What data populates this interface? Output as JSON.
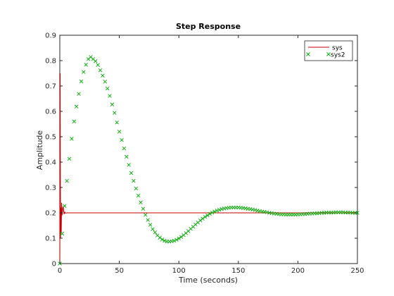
{
  "chart_data": {
    "type": "line",
    "title": "Step Response",
    "xlabel": "Time (seconds)",
    "ylabel": "Amplitude",
    "xlim": [
      0,
      250
    ],
    "ylim": [
      0,
      0.9
    ],
    "x_ticks": [
      0,
      50,
      100,
      150,
      200,
      250
    ],
    "y_ticks": [
      0,
      0.1,
      0.2,
      0.3,
      0.4,
      0.5,
      0.6,
      0.7,
      0.8,
      0.9
    ],
    "x_tick_labels": [
      "0",
      "50",
      "100",
      "150",
      "200",
      "250"
    ],
    "y_tick_labels": [
      "0",
      "0.1",
      "0.2",
      "0.3",
      "0.4",
      "0.5",
      "0.6",
      "0.7",
      "0.8",
      "0.9"
    ],
    "grid": false,
    "legend_position": "top-right",
    "series": [
      {
        "name": "sys",
        "style": "line",
        "color": "#cc0000",
        "x": [
          0,
          0.3,
          0.6,
          0.9,
          1.2,
          1.5,
          1.8,
          2.1,
          2.4,
          2.7,
          3.0,
          3.3,
          3.6,
          3.9,
          4.2,
          4.5,
          5,
          6,
          8,
          10,
          250
        ],
        "values": [
          0,
          0.75,
          0.1,
          0.22,
          0.12,
          0.24,
          0.19,
          0.2,
          0.215,
          0.225,
          0.22,
          0.205,
          0.195,
          0.2,
          0.203,
          0.2,
          0.199,
          0.2,
          0.2,
          0.2,
          0.2
        ]
      },
      {
        "name": "sys2",
        "style": "marker",
        "marker": "x",
        "color": "#00aa00",
        "x": [
          0,
          2,
          4,
          6,
          8,
          10,
          12,
          14,
          16,
          18,
          20,
          22,
          24,
          26,
          28,
          30,
          32,
          34,
          36,
          38,
          40,
          42,
          44,
          46,
          48,
          50,
          52,
          54,
          56,
          58,
          60,
          62,
          64,
          66,
          68,
          70,
          72,
          74,
          76,
          78,
          80,
          82,
          84,
          86,
          88,
          90,
          92,
          94,
          96,
          98,
          100,
          102,
          104,
          106,
          108,
          110,
          112,
          114,
          116,
          118,
          120,
          122,
          124,
          126,
          128,
          130,
          132,
          134,
          136,
          138,
          140,
          142,
          144,
          146,
          148,
          150,
          152,
          154,
          156,
          158,
          160,
          162,
          164,
          166,
          168,
          170,
          172,
          174,
          176,
          178,
          180,
          182,
          184,
          186,
          188,
          190,
          192,
          194,
          196,
          198,
          200,
          202,
          204,
          206,
          208,
          210,
          212,
          214,
          216,
          218,
          220,
          222,
          224,
          226,
          228,
          230,
          232,
          234,
          236,
          238,
          240,
          242,
          244,
          246,
          248,
          250
        ],
        "values": [
          0,
          0.118,
          0.227,
          0.326,
          0.413,
          0.492,
          0.56,
          0.619,
          0.669,
          0.718,
          0.755,
          0.784,
          0.806,
          0.814,
          0.806,
          0.798,
          0.783,
          0.762,
          0.741,
          0.717,
          0.69,
          0.661,
          0.627,
          0.594,
          0.556,
          0.52,
          0.487,
          0.454,
          0.421,
          0.389,
          0.357,
          0.326,
          0.296,
          0.268,
          0.241,
          0.216,
          0.192,
          0.172,
          0.153,
          0.136,
          0.123,
          0.111,
          0.102,
          0.095,
          0.09,
          0.087,
          0.087,
          0.088,
          0.09,
          0.094,
          0.099,
          0.105,
          0.112,
          0.12,
          0.128,
          0.137,
          0.145,
          0.154,
          0.162,
          0.17,
          0.177,
          0.184,
          0.19,
          0.196,
          0.201,
          0.205,
          0.209,
          0.212,
          0.215,
          0.217,
          0.219,
          0.22,
          0.221,
          0.221,
          0.221,
          0.221,
          0.22,
          0.219,
          0.218,
          0.216,
          0.215,
          0.213,
          0.211,
          0.209,
          0.207,
          0.205,
          0.204,
          0.202,
          0.2,
          0.199,
          0.197,
          0.196,
          0.195,
          0.194,
          0.194,
          0.193,
          0.193,
          0.193,
          0.193,
          0.193,
          0.194,
          0.194,
          0.195,
          0.195,
          0.196,
          0.197,
          0.197,
          0.198,
          0.198,
          0.199,
          0.2,
          0.2,
          0.201,
          0.201,
          0.201,
          0.201,
          0.202,
          0.202,
          0.202,
          0.202,
          0.201,
          0.201,
          0.201,
          0.2,
          0.2,
          0.2
        ]
      }
    ]
  }
}
